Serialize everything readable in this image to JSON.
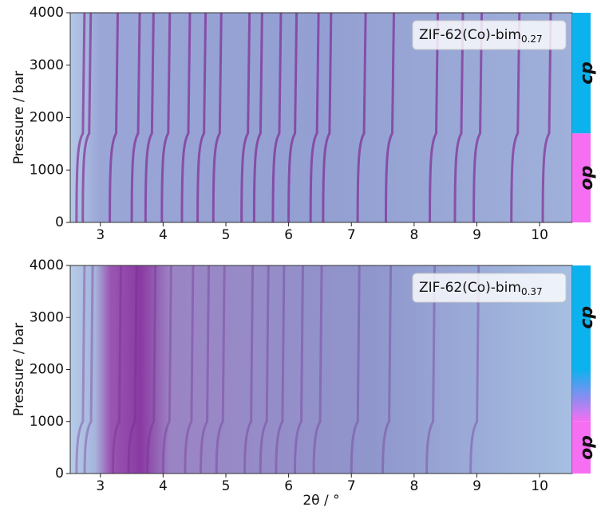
{
  "chart_data": [
    {
      "type": "heatmap",
      "label": "ZIF-62(Co)-bim",
      "label_sub": "0.27",
      "ylabel": "Pressure / bar",
      "xlim": [
        2.52,
        10.52
      ],
      "xticks": [
        3,
        4,
        5,
        6,
        7,
        8,
        9,
        10
      ],
      "ylim": [
        0,
        4000
      ],
      "yticks": [
        0,
        1000,
        2000,
        3000,
        4000
      ],
      "peaks": [
        2.62,
        2.72,
        3.15,
        3.5,
        3.72,
        3.98,
        4.3,
        4.55,
        4.8,
        5.25,
        5.45,
        5.75,
        6.0,
        6.35,
        6.55,
        7.1,
        7.55,
        8.25,
        8.65,
        8.95,
        9.55,
        10.05
      ],
      "phases": [
        {
          "name": "op",
          "color": "#f66ef2",
          "range": [
            0,
            1700
          ]
        },
        {
          "name": "cp",
          "color": "#0cb2ee",
          "range": [
            1700,
            4000
          ]
        }
      ]
    },
    {
      "type": "heatmap",
      "label": "ZIF-62(Co)-bim",
      "label_sub": "0.37",
      "ylabel": "Pressure / bar",
      "xlabel": "2θ / °",
      "xlim": [
        2.52,
        10.52
      ],
      "xticks": [
        3,
        4,
        5,
        6,
        7,
        8,
        9,
        10
      ],
      "ylim": [
        0,
        4000
      ],
      "yticks": [
        0,
        1000,
        2000,
        3000,
        4000
      ],
      "peaks": [
        2.62,
        2.75,
        3.2,
        3.45,
        3.75,
        4.0,
        4.35,
        4.6,
        4.85,
        5.3,
        5.55,
        5.8,
        6.1,
        6.4,
        7.0,
        7.5,
        8.2,
        8.9
      ],
      "phases": [
        {
          "name": "op",
          "color": "#f66ef2",
          "range": [
            0,
            1000
          ]
        },
        {
          "name": "cp",
          "color": "#0cb2ee",
          "range": [
            2000,
            4000
          ]
        }
      ]
    }
  ]
}
